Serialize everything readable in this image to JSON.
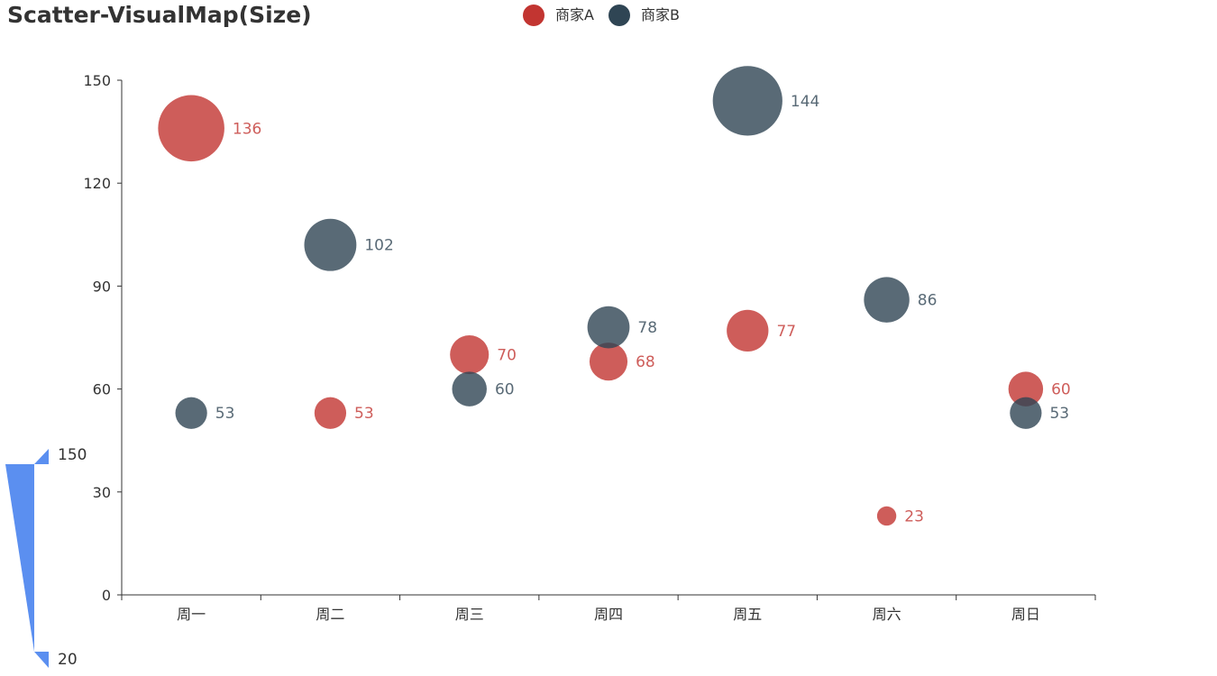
{
  "title": "Scatter-VisualMap(Size)",
  "legend": [
    {
      "label": "商家A",
      "color": "#c23531"
    },
    {
      "label": "商家B",
      "color": "#2f4554"
    }
  ],
  "chart_data": {
    "type": "scatter",
    "title": "Scatter-VisualMap(Size)",
    "categories": [
      "周一",
      "周二",
      "周三",
      "周四",
      "周五",
      "周六",
      "周日"
    ],
    "y_ticks": [
      "0",
      "30",
      "60",
      "90",
      "120",
      "150"
    ],
    "ylim": [
      0,
      150
    ],
    "xlabel": "",
    "ylabel": "",
    "grid": false,
    "legend_position": "top-center",
    "series": [
      {
        "name": "商家A",
        "color": "#c23531",
        "values": [
          136,
          53,
          70,
          68,
          77,
          23,
          60
        ]
      },
      {
        "name": "商家B",
        "color": "#2f4554",
        "values": [
          53,
          102,
          60,
          78,
          144,
          86,
          53
        ]
      }
    ],
    "visual_map": {
      "type": "size",
      "min": 20,
      "max": 150,
      "min_label": "20",
      "max_label": "150",
      "color": "#5b8ff0",
      "position": "bottom-left"
    }
  }
}
